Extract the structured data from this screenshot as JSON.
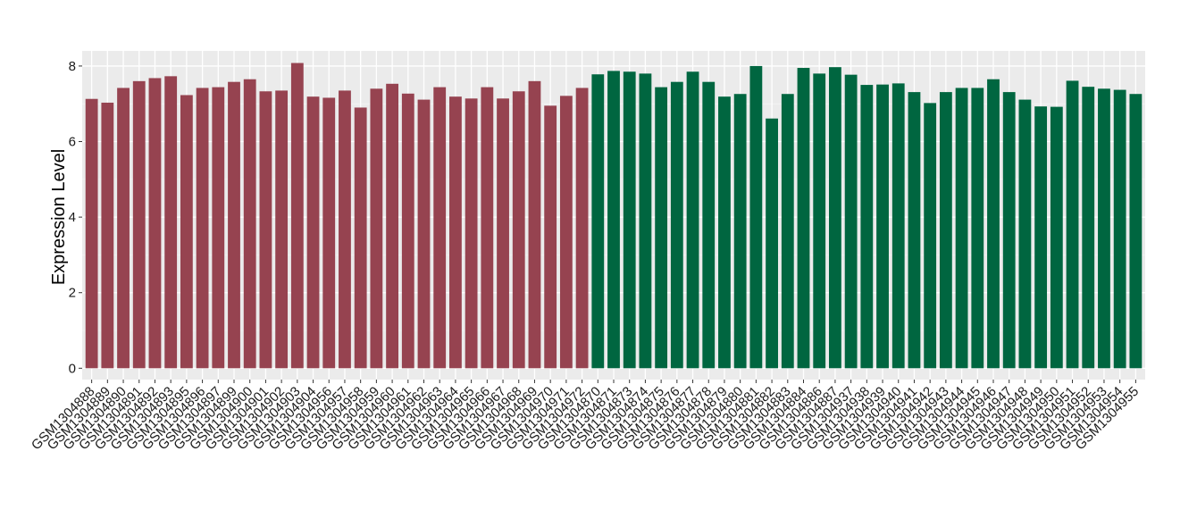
{
  "chart_data": {
    "type": "bar",
    "title": "",
    "xlabel": "",
    "ylabel": "Expression Level",
    "ylim": [
      -0.3,
      8.4
    ],
    "yticks": [
      0,
      2,
      4,
      6,
      8
    ],
    "grid": true,
    "background": "#EBEBEB",
    "colors": {
      "group1": "#964350",
      "group2": "#006640"
    },
    "categories": [
      "GSM1304888",
      "GSM1304889",
      "GSM1304890",
      "GSM1304891",
      "GSM1304892",
      "GSM1304893",
      "GSM1304895",
      "GSM1304896",
      "GSM1304897",
      "GSM1304899",
      "GSM1304900",
      "GSM1304901",
      "GSM1304902",
      "GSM1304903",
      "GSM1304904",
      "GSM1304956",
      "GSM1304957",
      "GSM1304958",
      "GSM1304959",
      "GSM1304960",
      "GSM1304961",
      "GSM1304962",
      "GSM1304963",
      "GSM1304964",
      "GSM1304965",
      "GSM1304966",
      "GSM1304967",
      "GSM1304968",
      "GSM1304969",
      "GSM1304970",
      "GSM1304971",
      "GSM1304972",
      "GSM1304870",
      "GSM1304871",
      "GSM1304873",
      "GSM1304874",
      "GSM1304875",
      "GSM1304876",
      "GSM1304877",
      "GSM1304878",
      "GSM1304879",
      "GSM1304880",
      "GSM1304881",
      "GSM1304882",
      "GSM1304883",
      "GSM1304884",
      "GSM1304886",
      "GSM1304887",
      "GSM1304937",
      "GSM1304938",
      "GSM1304939",
      "GSM1304940",
      "GSM1304941",
      "GSM1304942",
      "GSM1304943",
      "GSM1304944",
      "GSM1304945",
      "GSM1304946",
      "GSM1304947",
      "GSM1304948",
      "GSM1304949",
      "GSM1304950",
      "GSM1304951",
      "GSM1304952",
      "GSM1304953",
      "GSM1304954",
      "GSM1304955"
    ],
    "values": [
      7.13,
      7.03,
      7.42,
      7.6,
      7.68,
      7.73,
      7.23,
      7.42,
      7.44,
      7.58,
      7.65,
      7.33,
      7.35,
      8.08,
      7.19,
      7.16,
      7.35,
      6.9,
      7.4,
      7.53,
      7.27,
      7.11,
      7.44,
      7.19,
      7.14,
      7.44,
      7.14,
      7.33,
      7.6,
      6.95,
      7.21,
      7.42,
      7.78,
      7.87,
      7.85,
      7.8,
      7.44,
      7.58,
      7.85,
      7.58,
      7.19,
      7.26,
      8.0,
      6.61,
      7.26,
      7.95,
      7.8,
      7.97,
      7.77,
      7.5,
      7.51,
      7.54,
      7.31,
      7.02,
      7.31,
      7.42,
      7.42,
      7.65,
      7.31,
      7.11,
      6.93,
      6.92,
      7.61,
      7.45,
      7.4,
      7.37,
      7.26
    ],
    "groups": [
      1,
      1,
      1,
      1,
      1,
      1,
      1,
      1,
      1,
      1,
      1,
      1,
      1,
      1,
      1,
      1,
      1,
      1,
      1,
      1,
      1,
      1,
      1,
      1,
      1,
      1,
      1,
      1,
      1,
      1,
      1,
      1,
      2,
      2,
      2,
      2,
      2,
      2,
      2,
      2,
      2,
      2,
      2,
      2,
      2,
      2,
      2,
      2,
      2,
      2,
      2,
      2,
      2,
      2,
      2,
      2,
      2,
      2,
      2,
      2,
      2,
      2,
      2,
      2,
      2,
      2,
      2
    ]
  }
}
